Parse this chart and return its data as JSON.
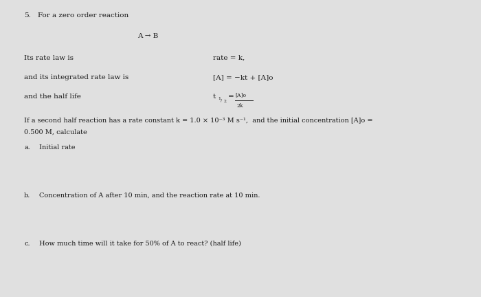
{
  "background_color": "#e0e0e0",
  "text_color": "#1a1a1a",
  "title_number": "5.",
  "title_text": "For a zero order reaction",
  "reaction": "A → B",
  "rate_law_label": "Its rate law is",
  "rate_law_formula": "rate = k,",
  "integrated_label": "and its integrated rate law is",
  "integrated_formula": "[A] = −kt + [A]o",
  "halflife_label": "and the half life",
  "halflife_numerator": "[A]o",
  "halflife_denominator": "2k",
  "problem_text": "If a second half reaction has a rate constant k = 1.0 × 10⁻³ M s⁻¹,  and the initial concentration [A]o =",
  "problem_text2": "0.500 M, calculate",
  "part_a_letter": "a.",
  "part_a_text": "Initial rate",
  "part_b_letter": "b.",
  "part_b_text": "Concentration of A after 10 min, and the reaction rate at 10 min.",
  "part_c_letter": "c.",
  "part_c_text": "How much time will it take for 50% of A to react? (half life)",
  "fs": 7.5
}
